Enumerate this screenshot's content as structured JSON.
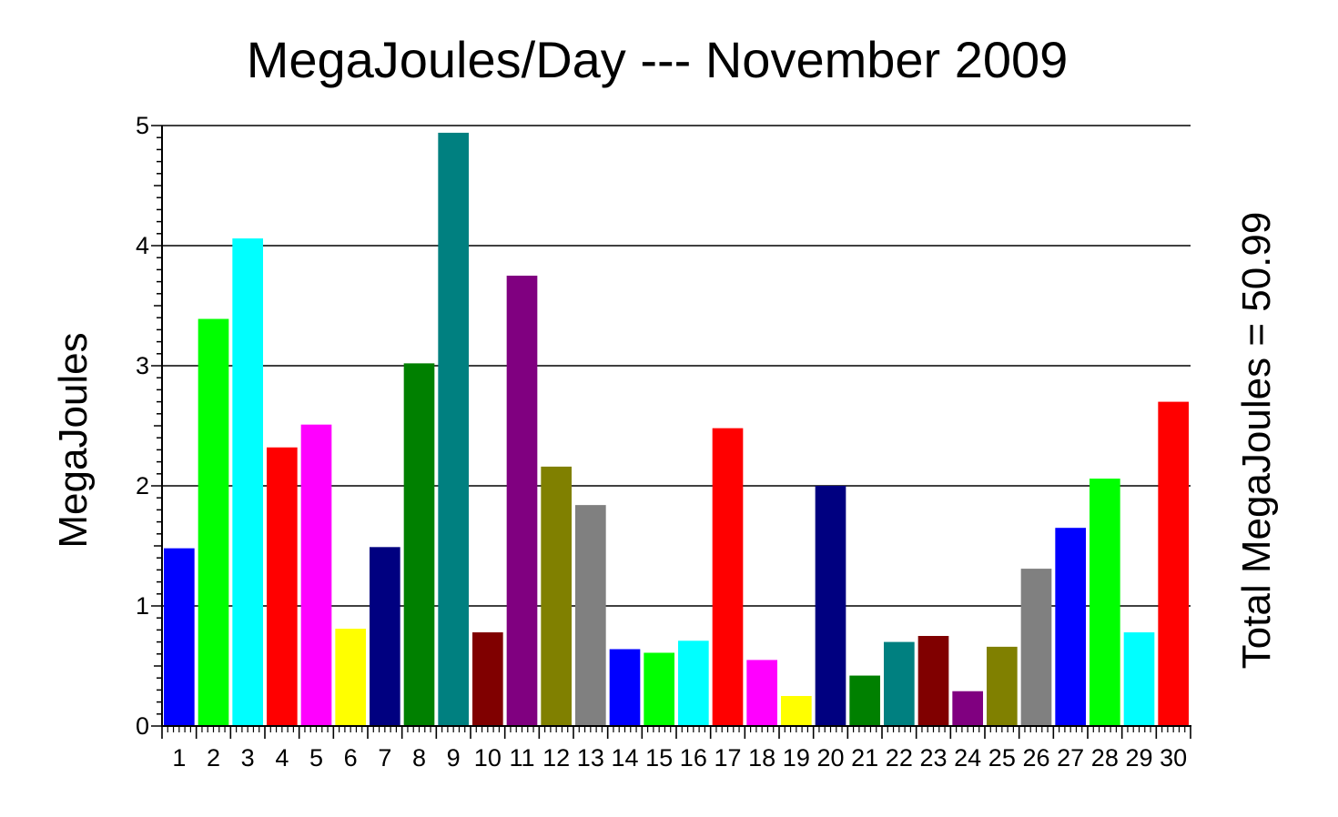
{
  "chart_data": {
    "type": "bar",
    "title": "MegaJoules/Day --- November 2009",
    "ylabel": "MegaJoules",
    "xlabel": "",
    "right_label": "Total MegaJoules = 50.99",
    "ylim": [
      0,
      5
    ],
    "yticks": [
      0,
      1,
      2,
      3,
      4,
      5
    ],
    "grid": true,
    "categories": [
      "1",
      "2",
      "3",
      "4",
      "5",
      "6",
      "7",
      "8",
      "9",
      "10",
      "11",
      "12",
      "13",
      "14",
      "15",
      "16",
      "17",
      "18",
      "19",
      "20",
      "21",
      "22",
      "23",
      "24",
      "25",
      "26",
      "27",
      "28",
      "29",
      "30"
    ],
    "values": [
      1.48,
      3.39,
      4.06,
      2.32,
      2.51,
      0.81,
      1.49,
      3.02,
      4.94,
      0.78,
      3.75,
      2.16,
      1.84,
      0.64,
      0.61,
      0.71,
      2.48,
      0.55,
      0.25,
      2.0,
      0.42,
      0.7,
      0.75,
      0.29,
      0.66,
      1.31,
      1.65,
      2.06,
      0.78,
      2.7
    ],
    "colors": [
      "#0000ff",
      "#00ff00",
      "#00ffff",
      "#ff0000",
      "#ff00ff",
      "#ffff00",
      "#000080",
      "#008000",
      "#008080",
      "#800000",
      "#800080",
      "#808000",
      "#808080",
      "#0000ff",
      "#00ff00",
      "#00ffff",
      "#ff0000",
      "#ff00ff",
      "#ffff00",
      "#000080",
      "#008000",
      "#008080",
      "#800000",
      "#800080",
      "#808000",
      "#808080",
      "#0000ff",
      "#00ff00",
      "#00ffff",
      "#ff0000"
    ]
  }
}
